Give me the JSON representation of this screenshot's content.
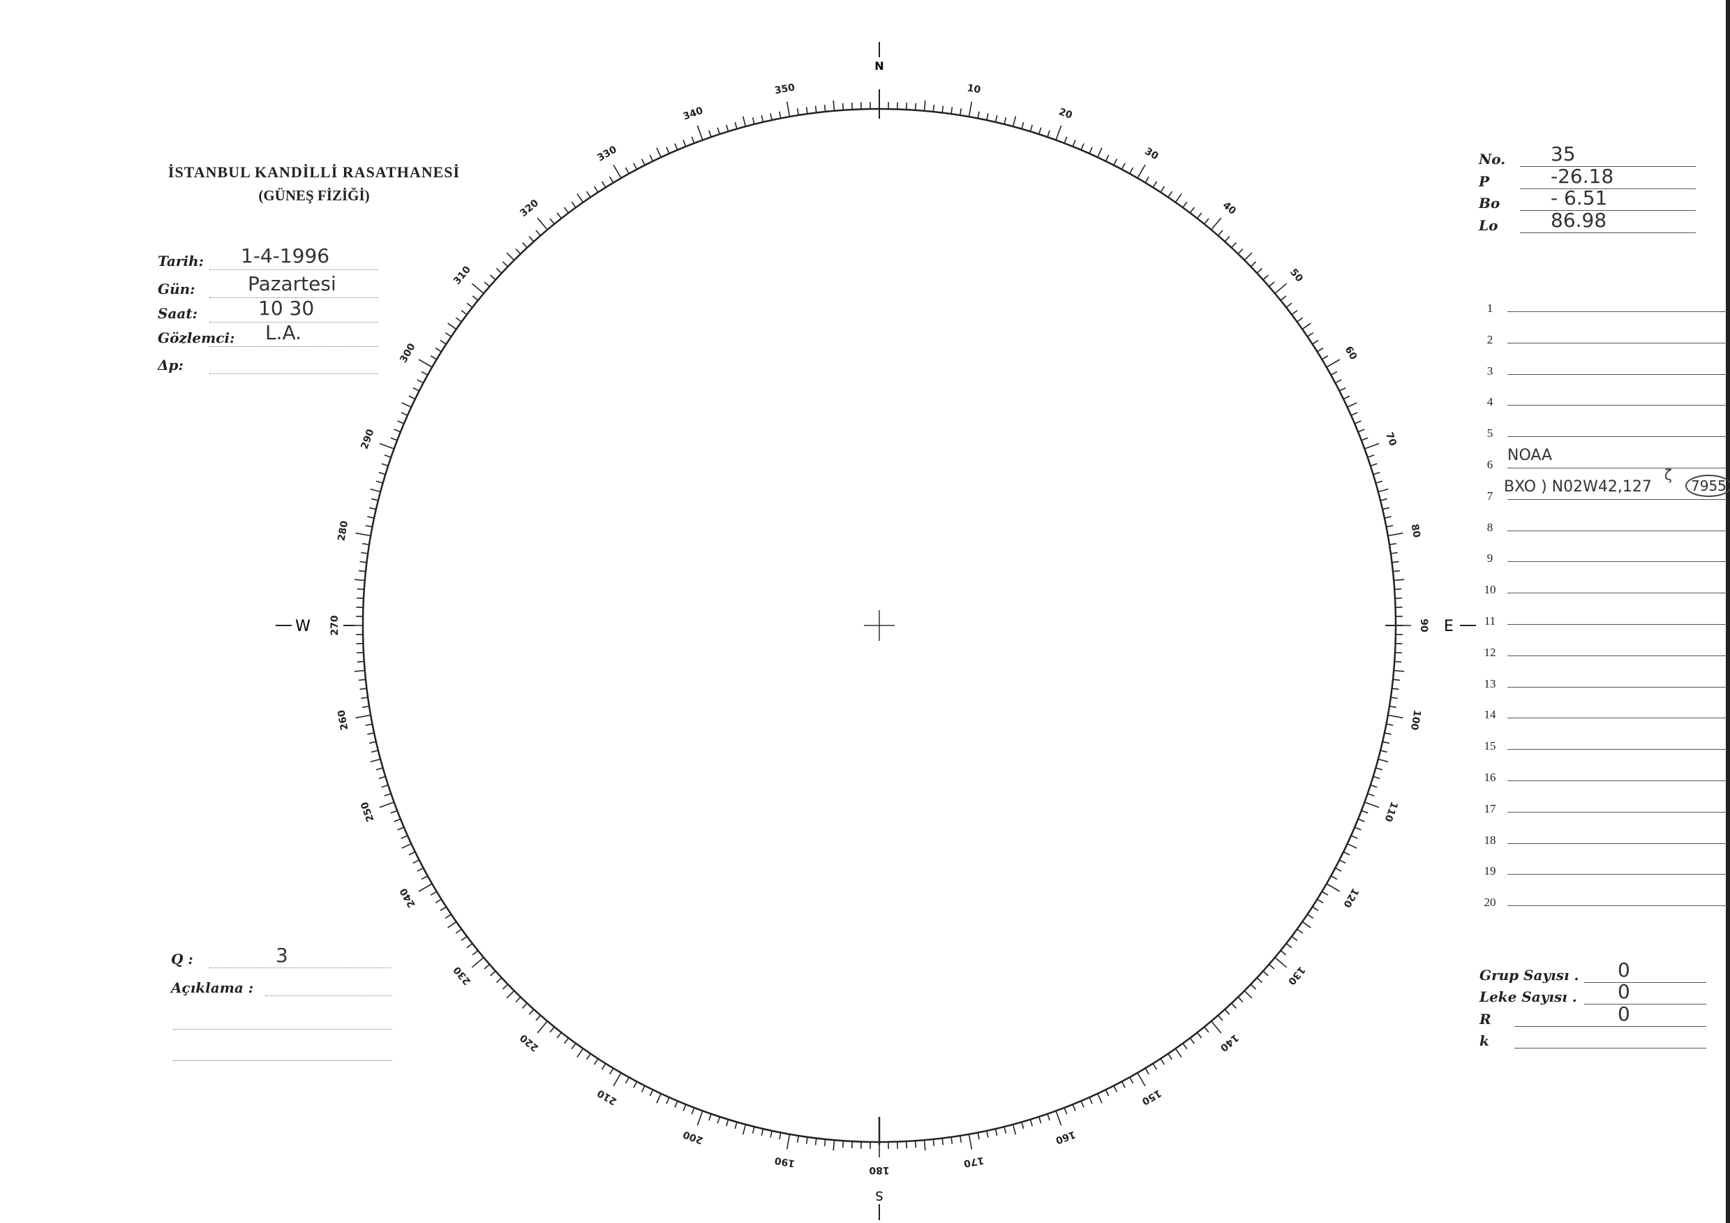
{
  "header": {
    "title": "İSTANBUL KANDİLLİ RASATHANESİ",
    "subtitle": "(GÜNEŞ FİZİĞİ)"
  },
  "info": [
    {
      "label": "Tarih:",
      "value": "1-4-1996"
    },
    {
      "label": "Gün:",
      "value": "Pazartesi"
    },
    {
      "label": "Saat:",
      "value": "10 30"
    },
    {
      "label": "Gözlemci:",
      "value": "L.A."
    },
    {
      "label": "Δp:",
      "value": ""
    }
  ],
  "params": [
    {
      "label": "No.",
      "value": "35"
    },
    {
      "label": "P",
      "value": "-26.18"
    },
    {
      "label": "Bo",
      "value": "- 6.51"
    },
    {
      "label": "Lo",
      "value": "86.98"
    }
  ],
  "rows": [
    "1",
    "2",
    "3",
    "4",
    "5",
    "6",
    "7",
    "8",
    "9",
    "10",
    "11",
    "12",
    "13",
    "14",
    "15",
    "16",
    "17",
    "18",
    "19",
    "20"
  ],
  "notes": {
    "row6": "NOAA",
    "row7": "BXO ) N02W42,127",
    "row7_mark": "ζ",
    "row7_circled": "7955"
  },
  "counts": [
    {
      "label": "Grup Sayısı .",
      "value": "0"
    },
    {
      "label": "Leke Sayısı .",
      "value": "0"
    },
    {
      "label": "R",
      "value": "0"
    },
    {
      "label": "k",
      "value": ""
    }
  ],
  "quality": {
    "label": "Q :",
    "value": "3",
    "remark_label": "Açıklama :"
  },
  "dial": {
    "cardinals": {
      "north": "N",
      "east": "E",
      "south": "S",
      "west": "W"
    },
    "labels": [
      "10",
      "20",
      "30",
      "40",
      "50",
      "60",
      "70",
      "80",
      "90",
      "100",
      "110",
      "120",
      "130",
      "140",
      "150",
      "160",
      "170",
      "180",
      "190",
      "200",
      "210",
      "220",
      "230",
      "240",
      "250",
      "260",
      "270",
      "280",
      "290",
      "300",
      "310",
      "320",
      "330",
      "340",
      "350"
    ]
  }
}
